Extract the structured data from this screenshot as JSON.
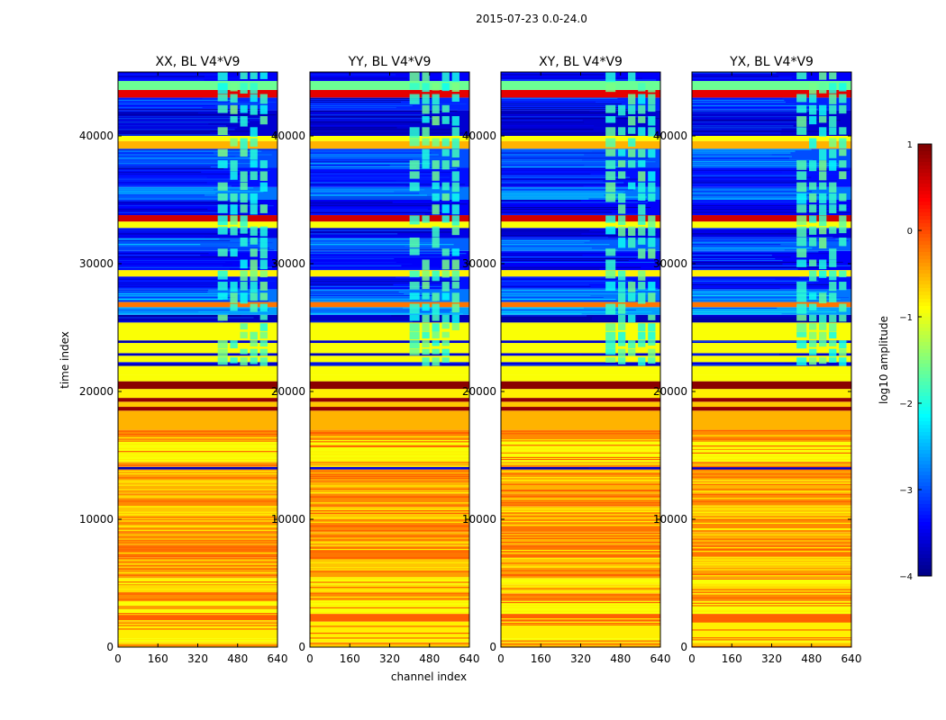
{
  "figure": {
    "suptitle": "2015-07-23 0.0-24.0",
    "xlabel": "channel index",
    "ylabel": "time index"
  },
  "chart_data": {
    "type": "heatmap",
    "colormap": "jet",
    "x_range": [
      0,
      640
    ],
    "y_range": [
      0,
      45000
    ],
    "x_ticks": [
      0,
      160,
      320,
      480,
      640
    ],
    "x_tick_labels": [
      "0",
      "160",
      "320",
      "480",
      "640"
    ],
    "y_ticks": [
      0,
      10000,
      20000,
      30000,
      40000
    ],
    "y_tick_labels": [
      "0",
      "10000",
      "20000",
      "30000",
      "40000"
    ],
    "colorbar": {
      "label": "log10 amplitude",
      "range": [
        -4,
        1
      ],
      "ticks": [
        1,
        0,
        -1,
        -2,
        -3,
        -4
      ],
      "tick_labels": [
        "1",
        "0",
        "−1",
        "−2",
        "−3",
        "−4"
      ]
    },
    "panels": [
      {
        "title": "XX, BL V4*V9",
        "xpol": "XX",
        "baseline": "V4*V9",
        "ylabels_shown": true
      },
      {
        "title": "YY, BL V4*V9",
        "xpol": "YY",
        "baseline": "V4*V9",
        "ylabels_shown": true
      },
      {
        "title": "XY, BL V4*V9",
        "xpol": "XY",
        "baseline": "V4*V9",
        "ylabels_shown": true
      },
      {
        "title": "YX, BL V4*V9",
        "xpol": "YX",
        "baseline": "V4*V9",
        "ylabels_shown": true
      }
    ],
    "bands": [
      {
        "t0": 0,
        "t1": 400,
        "value": -0.6
      },
      {
        "t0": 400,
        "t1": 700,
        "value": -0.9
      },
      {
        "t0": 700,
        "t1": 2000,
        "value": -0.8
      },
      {
        "t0": 2000,
        "t1": 2600,
        "value": -0.1
      },
      {
        "t0": 2600,
        "t1": 3600,
        "value": -0.9
      },
      {
        "t0": 3600,
        "t1": 4200,
        "value": -0.3
      },
      {
        "t0": 4200,
        "t1": 4900,
        "value": -0.7
      },
      {
        "t0": 4900,
        "t1": 5400,
        "value": -0.9
      },
      {
        "t0": 5400,
        "t1": 6200,
        "value": -0.4
      },
      {
        "t0": 6200,
        "t1": 7000,
        "value": -0.6
      },
      {
        "t0": 7000,
        "t1": 8000,
        "value": -0.2
      },
      {
        "t0": 8000,
        "t1": 9000,
        "value": -0.5
      },
      {
        "t0": 9000,
        "t1": 10000,
        "value": -0.3
      },
      {
        "t0": 10000,
        "t1": 11000,
        "value": -0.6
      },
      {
        "t0": 11000,
        "t1": 12000,
        "value": -0.3
      },
      {
        "t0": 12000,
        "t1": 13000,
        "value": -0.5
      },
      {
        "t0": 13000,
        "t1": 13900,
        "value": -0.4
      },
      {
        "t0": 13900,
        "t1": 14100,
        "value": -3.6
      },
      {
        "t0": 14100,
        "t1": 14500,
        "value": -0.5
      },
      {
        "t0": 14500,
        "t1": 16200,
        "value": -0.9
      },
      {
        "t0": 16200,
        "t1": 17000,
        "value": -0.3
      },
      {
        "t0": 17000,
        "t1": 18500,
        "value": -0.5
      },
      {
        "t0": 18500,
        "t1": 18800,
        "value": 0.9
      },
      {
        "t0": 18800,
        "t1": 19200,
        "value": -0.6
      },
      {
        "t0": 19200,
        "t1": 19500,
        "value": 0.9
      },
      {
        "t0": 19500,
        "t1": 20200,
        "value": -0.8
      },
      {
        "t0": 20200,
        "t1": 20800,
        "value": 0.95
      },
      {
        "t0": 20800,
        "t1": 21300,
        "value": -0.9
      },
      {
        "t0": 21300,
        "t1": 22000,
        "value": -0.9
      },
      {
        "t0": 22000,
        "t1": 22300,
        "value": -3.6
      },
      {
        "t0": 22300,
        "t1": 22800,
        "value": -0.9
      },
      {
        "t0": 22800,
        "t1": 23000,
        "value": -3.6
      },
      {
        "t0": 23000,
        "t1": 23800,
        "value": -0.9
      },
      {
        "t0": 23800,
        "t1": 24000,
        "value": -3.6
      },
      {
        "t0": 24000,
        "t1": 25400,
        "value": -0.9
      },
      {
        "t0": 25400,
        "t1": 26000,
        "value": -3.7
      },
      {
        "t0": 26000,
        "t1": 26600,
        "value": -2.6
      },
      {
        "t0": 26600,
        "t1": 27000,
        "value": -0.2
      },
      {
        "t0": 27000,
        "t1": 28000,
        "value": -2.8
      },
      {
        "t0": 28000,
        "t1": 29000,
        "value": -3.3
      },
      {
        "t0": 29000,
        "t1": 29500,
        "value": -0.8
      },
      {
        "t0": 29500,
        "t1": 31000,
        "value": -3.4
      },
      {
        "t0": 31000,
        "t1": 32000,
        "value": -2.9
      },
      {
        "t0": 32000,
        "t1": 32800,
        "value": -3.5
      },
      {
        "t0": 32800,
        "t1": 33300,
        "value": -0.9
      },
      {
        "t0": 33300,
        "t1": 33800,
        "value": 0.6
      },
      {
        "t0": 33800,
        "t1": 35000,
        "value": -3.4
      },
      {
        "t0": 35000,
        "t1": 36000,
        "value": -2.8
      },
      {
        "t0": 36000,
        "t1": 37500,
        "value": -3.3
      },
      {
        "t0": 37500,
        "t1": 39000,
        "value": -3.0
      },
      {
        "t0": 39000,
        "t1": 39600,
        "value": -0.5
      },
      {
        "t0": 39600,
        "t1": 40000,
        "value": -0.9
      },
      {
        "t0": 40000,
        "t1": 42000,
        "value": -3.6
      },
      {
        "t0": 42000,
        "t1": 43000,
        "value": -3.2
      },
      {
        "t0": 43000,
        "t1": 43600,
        "value": 0.5
      },
      {
        "t0": 43600,
        "t1": 44300,
        "value": -1.6
      },
      {
        "t0": 44300,
        "t1": 45000,
        "value": -3.4
      }
    ],
    "hot_channels": [
      [
        400,
        440
      ],
      [
        450,
        480
      ],
      [
        490,
        520
      ],
      [
        530,
        560
      ],
      [
        570,
        600
      ]
    ],
    "hot_region_t": [
      [
        22000,
        26000
      ],
      [
        26000,
        45000
      ]
    ]
  }
}
